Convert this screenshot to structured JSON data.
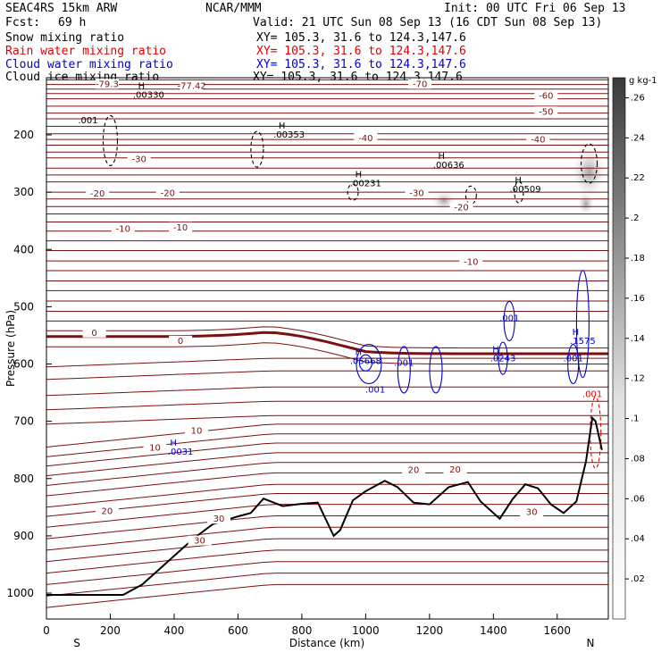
{
  "header": {
    "model": "SEAC4RS 15km ARW",
    "org": "NCAR/MMM",
    "init": "Init: 00 UTC Fri 06 Sep 13",
    "fcst_label": "Fcst:",
    "fcst_value": "69 h",
    "valid": "Valid: 21 UTC Sun 08 Sep 13 (16 CDT Sun 08 Sep 13)",
    "fields": [
      {
        "name": "Snow mixing ratio",
        "xy": "XY= 105.3, 31.6 to 124.3,147.6",
        "color": "#000000"
      },
      {
        "name": "Rain water mixing ratio",
        "xy": "XY= 105.3, 31.6 to 124.3,147.6",
        "color": "#e00000"
      },
      {
        "name": "Cloud water mixing ratio",
        "xy": "XY= 105.3, 31.6 to 124.3,147.6",
        "color": "#0000cc"
      },
      {
        "name": "Cloud ice mixing ratio",
        "xy": "XY= 105.3, 31.6 to 124.3,147.6",
        "color": "#000000"
      }
    ]
  },
  "chart_data": {
    "type": "cross-section contour",
    "xlabel": "Distance (km)",
    "ylabel": "Pressure (hPa)",
    "xlim": [
      0,
      1760
    ],
    "ylim_hpa": [
      100,
      1050
    ],
    "x_ticks": [
      "0",
      "200",
      "400",
      "600",
      "800",
      "1000",
      "1200",
      "1400",
      "1600"
    ],
    "y_ticks": [
      "200",
      "300",
      "400",
      "500",
      "600",
      "700",
      "800",
      "900",
      "1000"
    ],
    "endpoints": {
      "left": "S",
      "right": "N"
    },
    "colorbar": {
      "unit": "g kg-1",
      "labels": [
        ".26",
        ".24",
        ".22",
        ".2",
        ".18",
        ".16",
        ".14",
        ".12",
        ".1",
        ".08",
        ".06",
        ".04",
        ".02"
      ],
      "range": [
        0,
        0.27
      ]
    },
    "temperature_isotherms_c": [
      -70,
      -60,
      -50,
      -40,
      -30,
      -20,
      -10,
      0,
      10,
      20,
      30
    ],
    "isotherm_labels": [
      "-79.3",
      "-77.42",
      "-70",
      "-60",
      "-50",
      "-40",
      "-40",
      "-30",
      "-30",
      "-20",
      "-20",
      "-20",
      "-10",
      "-10",
      "-10",
      "0",
      "0",
      "10",
      "10",
      "20",
      "20",
      "20",
      "30",
      "30",
      "30"
    ],
    "terrain_pressure_hpa": [
      [
        0,
        1003
      ],
      [
        240,
        1003
      ],
      [
        300,
        985
      ],
      [
        380,
        945
      ],
      [
        460,
        905
      ],
      [
        520,
        880
      ],
      [
        600,
        866
      ],
      [
        640,
        860
      ],
      [
        680,
        835
      ],
      [
        740,
        848
      ],
      [
        800,
        844
      ],
      [
        850,
        842
      ],
      [
        900,
        900
      ],
      [
        920,
        890
      ],
      [
        960,
        838
      ],
      [
        1000,
        822
      ],
      [
        1060,
        804
      ],
      [
        1100,
        815
      ],
      [
        1150,
        842
      ],
      [
        1200,
        845
      ],
      [
        1260,
        815
      ],
      [
        1320,
        806
      ],
      [
        1360,
        840
      ],
      [
        1420,
        870
      ],
      [
        1460,
        836
      ],
      [
        1500,
        810
      ],
      [
        1540,
        817
      ],
      [
        1580,
        845
      ],
      [
        1620,
        860
      ],
      [
        1660,
        840
      ],
      [
        1690,
        770
      ],
      [
        1710,
        694
      ],
      [
        1720,
        700
      ],
      [
        1740,
        750
      ]
    ],
    "cloud_water_maxima": [
      {
        "label": "H",
        "value": ".0031",
        "x": 420,
        "p": 758
      },
      {
        "label": "H",
        "value": ".05668",
        "x": 1000,
        "p": 600
      },
      {
        "label": "",
        "value": ".001",
        "x": 1030,
        "p": 650
      },
      {
        "label": "",
        "value": ".001",
        "x": 1120,
        "p": 603
      },
      {
        "label": "",
        "value": ".001",
        "x": 1450,
        "p": 525
      },
      {
        "label": "H",
        "value": ".0243",
        "x": 1430,
        "p": 595
      },
      {
        "label": "H",
        "value": ".1575",
        "x": 1680,
        "p": 565
      },
      {
        "label": "",
        "value": ".001",
        "x": 1650,
        "p": 595
      }
    ],
    "snow_ice_maxima": [
      {
        "label": "H",
        "value": ".00330",
        "x": 320,
        "p": 135
      },
      {
        "label": "",
        "value": ".001",
        "x": 130,
        "p": 180
      },
      {
        "label": "H",
        "value": ".00353",
        "x": 760,
        "p": 205
      },
      {
        "label": "H",
        "value": ".00231",
        "x": 1000,
        "p": 290
      },
      {
        "label": "H",
        "value": ".00636",
        "x": 1260,
        "p": 258
      },
      {
        "label": "H",
        "value": ".00509",
        "x": 1500,
        "p": 300
      }
    ],
    "rain_maxima": [
      {
        "label": "",
        "value": ".001",
        "x": 1710,
        "p": 658
      }
    ]
  }
}
